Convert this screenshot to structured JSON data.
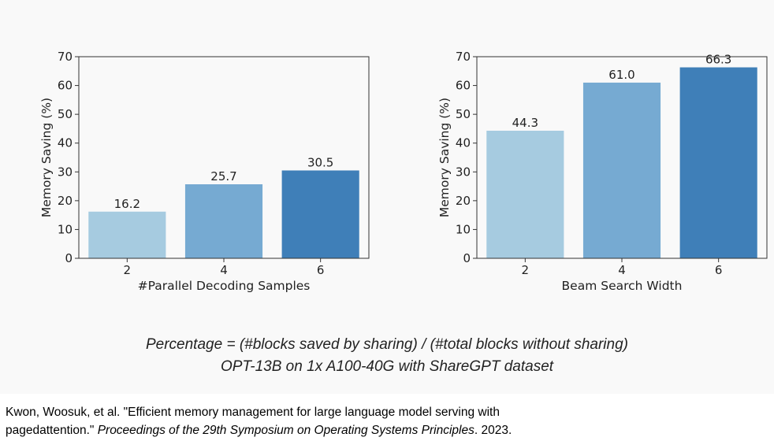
{
  "chart_data": [
    {
      "type": "bar",
      "categories": [
        "2",
        "4",
        "6"
      ],
      "values": [
        16.2,
        25.7,
        30.5
      ],
      "value_labels": [
        "16.2",
        "25.7",
        "30.5"
      ],
      "xlabel": "#Parallel Decoding Samples",
      "ylabel": "Memory Saving (%)",
      "ylim": [
        0,
        70
      ],
      "yticks": [
        0,
        10,
        20,
        30,
        40,
        50,
        60,
        70
      ],
      "colors": [
        "#a6cbe0",
        "#76aad2",
        "#3f7fb8"
      ],
      "grid": false,
      "legend": "none"
    },
    {
      "type": "bar",
      "categories": [
        "2",
        "4",
        "6"
      ],
      "values": [
        44.3,
        61.0,
        66.3
      ],
      "value_labels": [
        "44.3",
        "61.0",
        "66.3"
      ],
      "xlabel": "Beam Search Width",
      "ylabel": "Memory Saving (%)",
      "ylim": [
        0,
        70
      ],
      "yticks": [
        0,
        10,
        20,
        30,
        40,
        50,
        60,
        70
      ],
      "colors": [
        "#a6cbe0",
        "#76aad2",
        "#3f7fb8"
      ],
      "grid": false,
      "legend": "none"
    }
  ],
  "caption": {
    "line1": "Percentage = (#blocks saved by sharing) / (#total blocks without sharing)",
    "line2": "OPT-13B on 1x A100-40G with ShareGPT dataset"
  },
  "citation": {
    "line1": "Kwon, Woosuk, et al. \"Efficient memory management for large language model serving with",
    "line2_prefix": "pagedattention.\" ",
    "line2_venue": "Proceedings of the 29th Symposium on Operating Systems Principles",
    "line2_suffix": ". 2023."
  }
}
